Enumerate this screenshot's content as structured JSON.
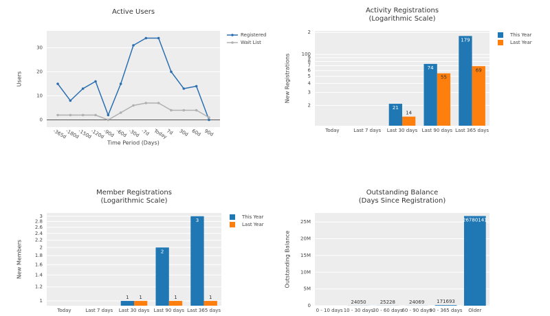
{
  "chart_data": [
    {
      "type": "line",
      "title": "Active Users",
      "xlabel": "Time Period (Days)",
      "ylabel": "Users",
      "categories": [
        "-365d",
        "-180d",
        "-150d",
        "-120d",
        "-90d",
        "-60d",
        "-30d",
        "-7d",
        "Today",
        "7d",
        "30d",
        "60d",
        "90d"
      ],
      "series": [
        {
          "name": "Registered",
          "color": "#2b6fb0",
          "values": [
            15,
            8,
            13,
            16,
            2,
            15,
            31,
            34,
            34,
            20,
            13,
            14,
            0
          ]
        },
        {
          "name": "Wait List",
          "color": "#b0b0b0",
          "values": [
            2,
            2,
            2,
            2,
            0,
            3,
            6,
            7,
            7,
            4,
            4,
            4,
            1
          ]
        }
      ],
      "ylim": [
        -3,
        37
      ],
      "yticks": [
        0,
        10,
        20,
        30
      ],
      "grid": true,
      "legend": "right"
    },
    {
      "type": "bar",
      "title": "Activity Registrations",
      "subtitle": "(Logarithmic Scale)",
      "ylabel": "New Registrations",
      "categories": [
        "Today",
        "Last 7 days",
        "Last 30 days",
        "Last 90 days",
        "Last 365 days"
      ],
      "series": [
        {
          "name": "This Year",
          "color": "#1f77b4",
          "values": [
            null,
            null,
            21,
            74,
            179
          ]
        },
        {
          "name": "Last Year",
          "color": "#ff7f0e",
          "values": [
            null,
            null,
            14,
            55,
            69
          ]
        }
      ],
      "log_scale": true,
      "ylim": [
        10.5,
        210
      ],
      "yticks": [
        {
          "value": 20,
          "label": "2"
        },
        {
          "value": 30,
          "label": "3"
        },
        {
          "value": 40,
          "label": "4"
        },
        {
          "value": 50,
          "label": "5"
        },
        {
          "value": 60,
          "label": "6"
        },
        {
          "value": 70,
          "label": "7"
        },
        {
          "value": 80,
          "label": "8"
        },
        {
          "value": 90,
          "label": "9"
        },
        100,
        {
          "value": 200,
          "label": "2"
        }
      ],
      "grid": true,
      "legend": "right"
    },
    {
      "type": "bar",
      "title": "Member Registrations",
      "subtitle": "(Logarithmic Scale)",
      "ylabel": "New Members",
      "categories": [
        "Today",
        "Last 7 days",
        "Last 30 days",
        "Last 90 days",
        "Last 365 days"
      ],
      "series": [
        {
          "name": "This Year",
          "color": "#1f77b4",
          "values": [
            null,
            null,
            1,
            2,
            3
          ]
        },
        {
          "name": "Last Year",
          "color": "#ff7f0e",
          "values": [
            null,
            null,
            1,
            1,
            1
          ]
        }
      ],
      "log_scale": true,
      "ylim": [
        0.94,
        3.13
      ],
      "yticks": [
        1,
        1.2,
        1.4,
        1.6,
        1.8,
        2,
        2.2,
        2.4,
        2.6,
        2.8,
        3
      ],
      "grid": true,
      "legend": "right"
    },
    {
      "type": "bar",
      "title": "Outstanding Balance",
      "subtitle": "(Days Since Registration)",
      "ylabel": "Outstanding Balance",
      "categories": [
        "0 - 10 days",
        "10 - 30 days",
        "30 - 60 days",
        "60 - 90 days",
        "90 - 365 days",
        "Older"
      ],
      "series": [
        {
          "color": "#1f77b4",
          "values": [
            null,
            24050,
            25228,
            24069,
            171693,
            26780141
          ]
        }
      ],
      "ylim": [
        0,
        27700000
      ],
      "yticks": [
        0,
        {
          "value": 5000000,
          "label": "5M"
        },
        {
          "value": 10000000,
          "label": "10M"
        },
        {
          "value": 15000000,
          "label": "15M"
        },
        {
          "value": 20000000,
          "label": "20M"
        },
        {
          "value": 25000000,
          "label": "25M"
        }
      ],
      "grid": true
    }
  ]
}
